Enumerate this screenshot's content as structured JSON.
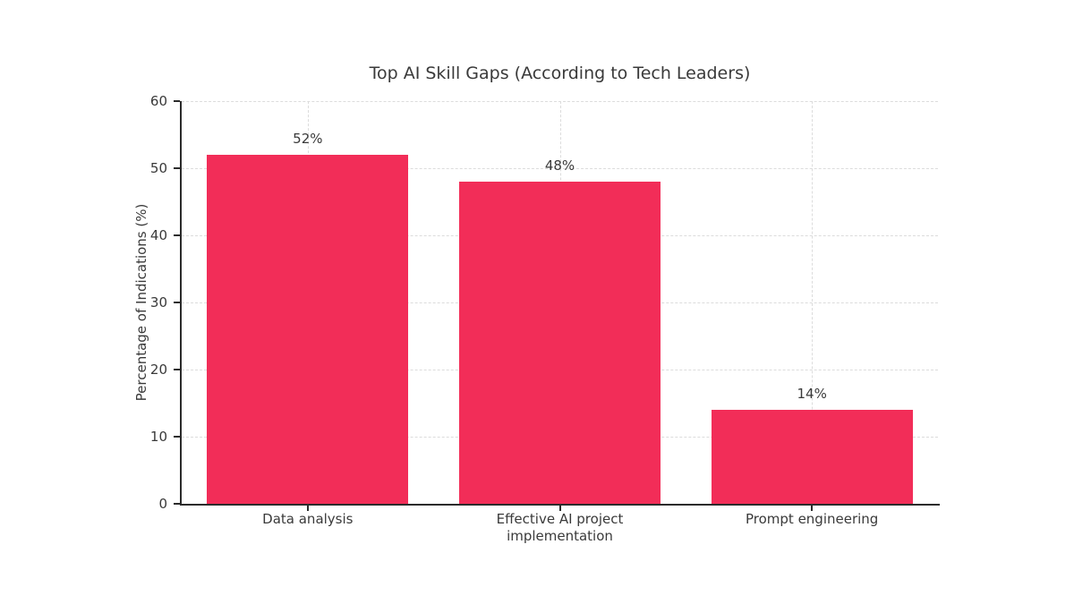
{
  "page": {
    "background": "#ffffff"
  },
  "chart_data": {
    "type": "bar",
    "title": "Top AI Skill Gaps (According to Tech Leaders)",
    "xlabel": "",
    "ylabel": "Percentage of Indications (%)",
    "categories": [
      "Data analysis",
      "Effective AI project\nimplementation",
      "Prompt engineering"
    ],
    "values": [
      52,
      48,
      14
    ],
    "data_labels": [
      "52%",
      "48%",
      "14%"
    ],
    "ylim": [
      0,
      60
    ],
    "yticks": [
      0,
      10,
      20,
      30,
      40,
      50,
      60
    ],
    "bar_width_fraction": 0.8,
    "grid": true,
    "grid_style": "dashed",
    "legend": "none",
    "colors": {
      "bar": "#F22D58",
      "grid": "#dcdcdc",
      "axis": "#2b2b2b",
      "text": "#3a3a3a",
      "background": "#ffffff"
    }
  }
}
